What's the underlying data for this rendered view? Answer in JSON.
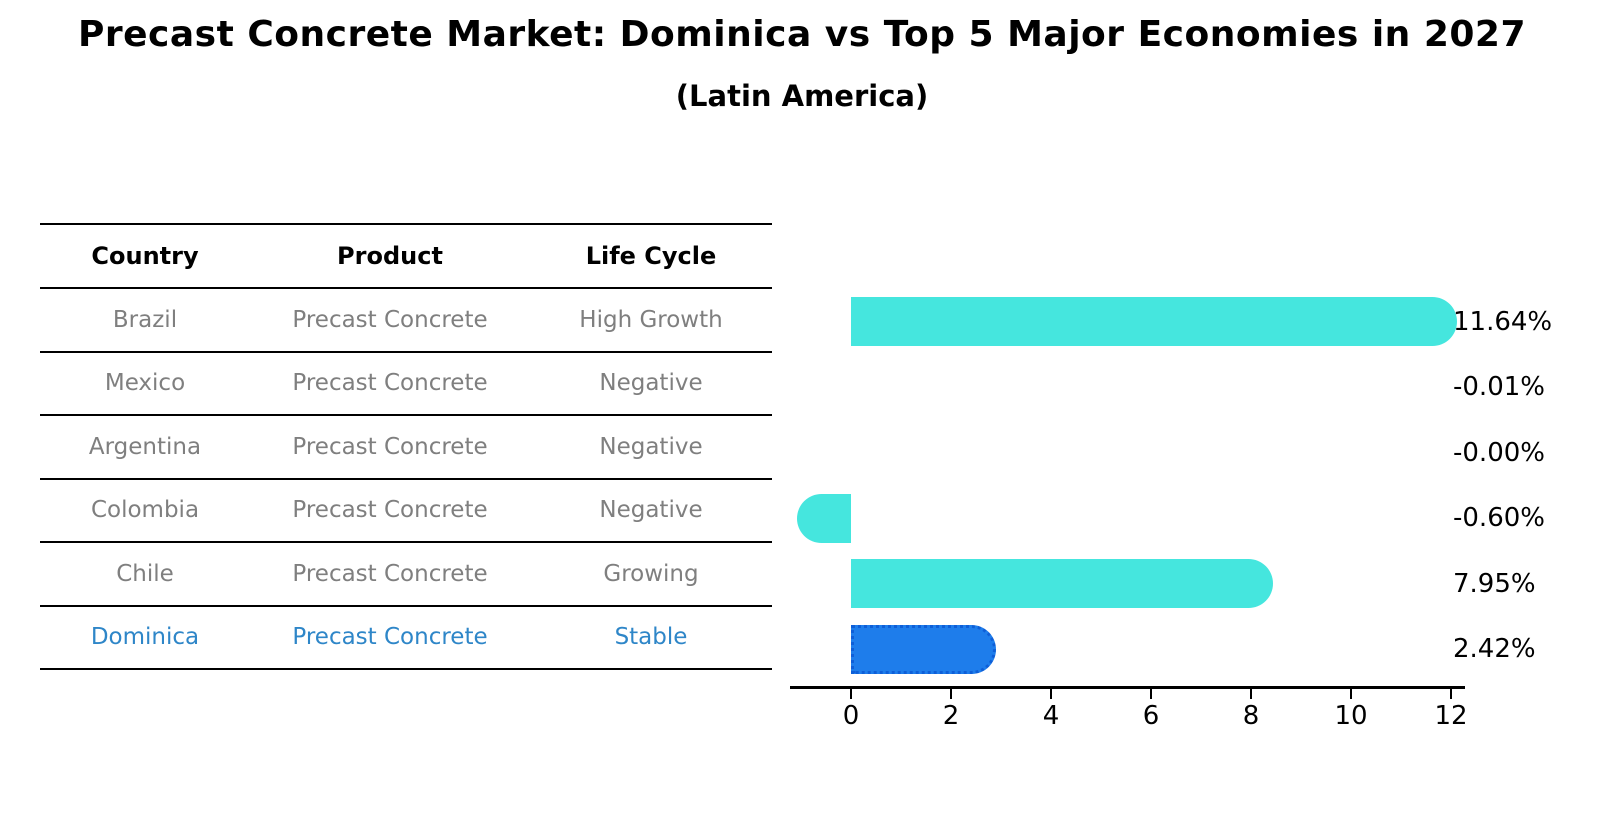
{
  "title": "Precast Concrete Market: Dominica vs Top 5 Major Economies in 2027",
  "subtitle": "(Latin America)",
  "table": {
    "headers": [
      "Country",
      "Product",
      "Life Cycle"
    ],
    "rows": [
      {
        "country": "Brazil",
        "product": "Precast Concrete",
        "life_cycle": "High Growth",
        "highlight": false
      },
      {
        "country": "Mexico",
        "product": "Precast Concrete",
        "life_cycle": "Negative",
        "highlight": false
      },
      {
        "country": "Argentina",
        "product": "Precast Concrete",
        "life_cycle": "Negative",
        "highlight": false
      },
      {
        "country": "Colombia",
        "product": "Precast Concrete",
        "life_cycle": "Negative",
        "highlight": false
      },
      {
        "country": "Chile",
        "product": "Precast Concrete",
        "life_cycle": "Growing",
        "highlight": false
      },
      {
        "country": "Dominica",
        "product": "Precast Concrete",
        "life_cycle": "Stable",
        "highlight": true
      }
    ]
  },
  "chart_data": {
    "type": "bar",
    "orientation": "horizontal",
    "categories": [
      "Brazil",
      "Mexico",
      "Argentina",
      "Colombia",
      "Chile",
      "Dominica"
    ],
    "values": [
      11.64,
      -0.01,
      -0.0,
      -0.6,
      7.95,
      2.42
    ],
    "value_labels": [
      "11.64%",
      "-0.01%",
      "-0.00%",
      "-0.60%",
      "7.95%",
      "2.42%"
    ],
    "xticks": [
      0,
      2,
      4,
      6,
      8,
      10,
      12
    ],
    "xtick_labels": [
      "0",
      "2",
      "4",
      "6",
      "8",
      "10",
      "12"
    ],
    "xlim": [
      -1.2,
      12.4
    ],
    "grid": false,
    "legend": false,
    "highlight_index": 5,
    "title": "Precast Concrete Market: Dominica vs Top 5 Major Economies in 2027",
    "subtitle": "(Latin America)"
  },
  "colors": {
    "bar": "#45E6DE",
    "highlight_bar": "#1E7DEB",
    "highlight_bar_border": "#0E5FD8",
    "highlight_text": "#2E86C8",
    "table_text": "#7F7F7F",
    "axis": "#000000"
  }
}
